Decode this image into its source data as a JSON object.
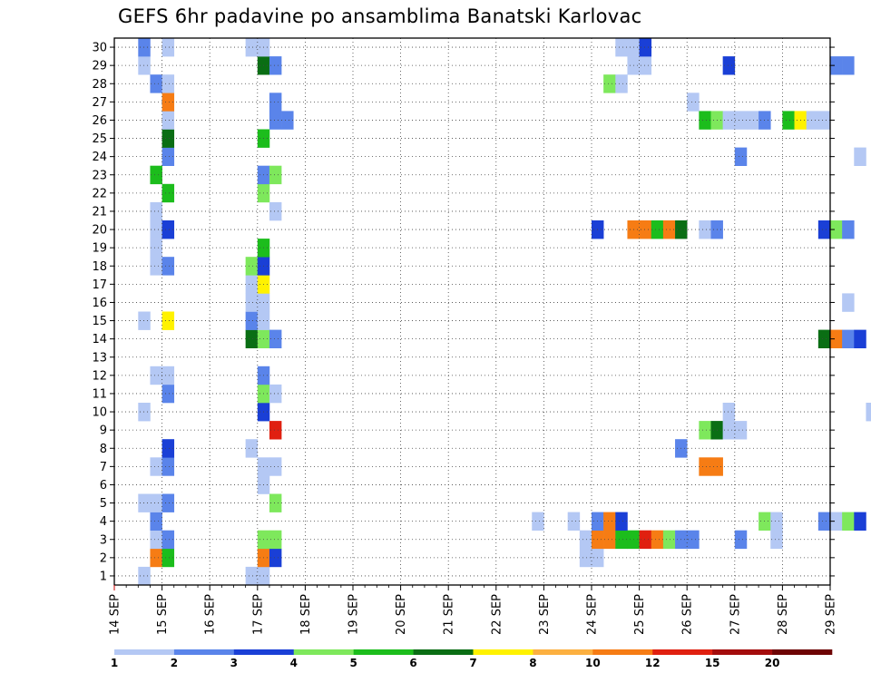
{
  "chart_data": {
    "type": "heatmap",
    "title": "GEFS 6hr padavine po ansamblima Banatski Karlovac",
    "x_tick_labels": [
      "14 SEP",
      "15 SEP",
      "16 SEP",
      "17 SEP",
      "18 SEP",
      "19 SEP",
      "20 SEP",
      "21 SEP",
      "22 SEP",
      "23 SEP",
      "24 SEP",
      "25 SEP",
      "26 SEP",
      "27 SEP",
      "28 SEP",
      "29 SEP"
    ],
    "y_tick_labels": [
      "1",
      "2",
      "3",
      "4",
      "5",
      "6",
      "7",
      "8",
      "9",
      "10",
      "11",
      "12",
      "13",
      "14",
      "15",
      "16",
      "17",
      "18",
      "19",
      "20",
      "21",
      "22",
      "23",
      "24",
      "25",
      "26",
      "27",
      "28",
      "29",
      "30"
    ],
    "ylim": [
      0.5,
      30.5
    ],
    "grid": true,
    "colorbar": {
      "labels": [
        "1",
        "2",
        "3",
        "4",
        "5",
        "6",
        "7",
        "8",
        "10",
        "12",
        "15",
        "20"
      ],
      "colors": [
        "#b4c8f4",
        "#5a84ea",
        "#1a3fd6",
        "#7ee85c",
        "#1cbd1c",
        "#0a6e14",
        "#fff200",
        "#fcb040",
        "#f67c14",
        "#e02010",
        "#a40c0c",
        "#6e0404"
      ]
    },
    "cells": [
      {
        "day": "14 SEP",
        "s": 2,
        "m": 1,
        "v": 1
      },
      {
        "day": "14 SEP",
        "s": 2,
        "m": 5,
        "v": 1
      },
      {
        "day": "14 SEP",
        "s": 2,
        "m": 10,
        "v": 1
      },
      {
        "day": "14 SEP",
        "s": 2,
        "m": 15,
        "v": 1
      },
      {
        "day": "14 SEP",
        "s": 2,
        "m": 29,
        "v": 1
      },
      {
        "day": "14 SEP",
        "s": 2,
        "m": 30,
        "v": 2
      },
      {
        "day": "14 SEP",
        "s": 3,
        "m": 2,
        "v": 10
      },
      {
        "day": "14 SEP",
        "s": 3,
        "m": 3,
        "v": 1
      },
      {
        "day": "14 SEP",
        "s": 3,
        "m": 4,
        "v": 2
      },
      {
        "day": "14 SEP",
        "s": 3,
        "m": 5,
        "v": 1
      },
      {
        "day": "14 SEP",
        "s": 3,
        "m": 7,
        "v": 1
      },
      {
        "day": "14 SEP",
        "s": 3,
        "m": 12,
        "v": 1
      },
      {
        "day": "14 SEP",
        "s": 3,
        "m": 18,
        "v": 1
      },
      {
        "day": "14 SEP",
        "s": 3,
        "m": 19,
        "v": 1
      },
      {
        "day": "14 SEP",
        "s": 3,
        "m": 20,
        "v": 1
      },
      {
        "day": "14 SEP",
        "s": 3,
        "m": 21,
        "v": 1
      },
      {
        "day": "14 SEP",
        "s": 3,
        "m": 23,
        "v": 5
      },
      {
        "day": "14 SEP",
        "s": 3,
        "m": 28,
        "v": 2
      },
      {
        "day": "15 SEP",
        "s": 0,
        "m": 2,
        "v": 5
      },
      {
        "day": "15 SEP",
        "s": 0,
        "m": 3,
        "v": 2
      },
      {
        "day": "15 SEP",
        "s": 0,
        "m": 5,
        "v": 2
      },
      {
        "day": "15 SEP",
        "s": 0,
        "m": 7,
        "v": 2
      },
      {
        "day": "15 SEP",
        "s": 0,
        "m": 8,
        "v": 3
      },
      {
        "day": "15 SEP",
        "s": 0,
        "m": 11,
        "v": 2
      },
      {
        "day": "15 SEP",
        "s": 0,
        "m": 12,
        "v": 1
      },
      {
        "day": "15 SEP",
        "s": 0,
        "m": 15,
        "v": 7
      },
      {
        "day": "15 SEP",
        "s": 0,
        "m": 18,
        "v": 2
      },
      {
        "day": "15 SEP",
        "s": 0,
        "m": 20,
        "v": 3
      },
      {
        "day": "15 SEP",
        "s": 0,
        "m": 22,
        "v": 5
      },
      {
        "day": "15 SEP",
        "s": 0,
        "m": 24,
        "v": 2
      },
      {
        "day": "15 SEP",
        "s": 0,
        "m": 25,
        "v": 6
      },
      {
        "day": "15 SEP",
        "s": 0,
        "m": 26,
        "v": 1
      },
      {
        "day": "15 SEP",
        "s": 0,
        "m": 27,
        "v": 10
      },
      {
        "day": "15 SEP",
        "s": 0,
        "m": 28,
        "v": 1
      },
      {
        "day": "15 SEP",
        "s": 0,
        "m": 30,
        "v": 1
      },
      {
        "day": "16 SEP",
        "s": 3,
        "m": 1,
        "v": 1
      },
      {
        "day": "16 SEP",
        "s": 3,
        "m": 8,
        "v": 1
      },
      {
        "day": "16 SEP",
        "s": 3,
        "m": 14,
        "v": 6
      },
      {
        "day": "16 SEP",
        "s": 3,
        "m": 15,
        "v": 2
      },
      {
        "day": "16 SEP",
        "s": 3,
        "m": 16,
        "v": 1
      },
      {
        "day": "16 SEP",
        "s": 3,
        "m": 17,
        "v": 1
      },
      {
        "day": "16 SEP",
        "s": 3,
        "m": 18,
        "v": 4
      },
      {
        "day": "16 SEP",
        "s": 3,
        "m": 30,
        "v": 1
      },
      {
        "day": "17 SEP",
        "s": 0,
        "m": 1,
        "v": 1
      },
      {
        "day": "17 SEP",
        "s": 0,
        "m": 2,
        "v": 10
      },
      {
        "day": "17 SEP",
        "s": 0,
        "m": 3,
        "v": 4
      },
      {
        "day": "17 SEP",
        "s": 0,
        "m": 6,
        "v": 1
      },
      {
        "day": "17 SEP",
        "s": 0,
        "m": 7,
        "v": 1
      },
      {
        "day": "17 SEP",
        "s": 0,
        "m": 10,
        "v": 3
      },
      {
        "day": "17 SEP",
        "s": 0,
        "m": 11,
        "v": 4
      },
      {
        "day": "17 SEP",
        "s": 0,
        "m": 12,
        "v": 2
      },
      {
        "day": "17 SEP",
        "s": 0,
        "m": 14,
        "v": 4
      },
      {
        "day": "17 SEP",
        "s": 0,
        "m": 15,
        "v": 1
      },
      {
        "day": "17 SEP",
        "s": 0,
        "m": 16,
        "v": 1
      },
      {
        "day": "17 SEP",
        "s": 0,
        "m": 17,
        "v": 7
      },
      {
        "day": "17 SEP",
        "s": 0,
        "m": 18,
        "v": 3
      },
      {
        "day": "17 SEP",
        "s": 0,
        "m": 19,
        "v": 5
      },
      {
        "day": "17 SEP",
        "s": 0,
        "m": 22,
        "v": 4
      },
      {
        "day": "17 SEP",
        "s": 0,
        "m": 23,
        "v": 2
      },
      {
        "day": "17 SEP",
        "s": 0,
        "m": 25,
        "v": 5
      },
      {
        "day": "17 SEP",
        "s": 0,
        "m": 29,
        "v": 6
      },
      {
        "day": "17 SEP",
        "s": 0,
        "m": 30,
        "v": 1
      },
      {
        "day": "17 SEP",
        "s": 1,
        "m": 2,
        "v": 3
      },
      {
        "day": "17 SEP",
        "s": 1,
        "m": 3,
        "v": 4
      },
      {
        "day": "17 SEP",
        "s": 1,
        "m": 5,
        "v": 4
      },
      {
        "day": "17 SEP",
        "s": 1,
        "m": 7,
        "v": 1
      },
      {
        "day": "17 SEP",
        "s": 1,
        "m": 9,
        "v": 12
      },
      {
        "day": "17 SEP",
        "s": 1,
        "m": 11,
        "v": 1
      },
      {
        "day": "17 SEP",
        "s": 1,
        "m": 14,
        "v": 2
      },
      {
        "day": "17 SEP",
        "s": 1,
        "m": 21,
        "v": 1
      },
      {
        "day": "17 SEP",
        "s": 1,
        "m": 23,
        "v": 4
      },
      {
        "day": "17 SEP",
        "s": 1,
        "m": 26,
        "v": 2
      },
      {
        "day": "17 SEP",
        "s": 1,
        "m": 27,
        "v": 2
      },
      {
        "day": "17 SEP",
        "s": 1,
        "m": 29,
        "v": 2
      },
      {
        "day": "17 SEP",
        "s": 2,
        "m": 26,
        "v": 2
      },
      {
        "day": "22 SEP",
        "s": 3,
        "m": 4,
        "v": 1
      },
      {
        "day": "23 SEP",
        "s": 2,
        "m": 4,
        "v": 1
      },
      {
        "day": "23 SEP",
        "s": 3,
        "m": 2,
        "v": 1
      },
      {
        "day": "23 SEP",
        "s": 3,
        "m": 3,
        "v": 1
      },
      {
        "day": "24 SEP",
        "s": 0,
        "m": 2,
        "v": 1
      },
      {
        "day": "24 SEP",
        "s": 0,
        "m": 3,
        "v": 10
      },
      {
        "day": "24 SEP",
        "s": 0,
        "m": 4,
        "v": 2
      },
      {
        "day": "24 SEP",
        "s": 0,
        "m": 20,
        "v": 3
      },
      {
        "day": "24 SEP",
        "s": 1,
        "m": 3,
        "v": 10
      },
      {
        "day": "24 SEP",
        "s": 1,
        "m": 4,
        "v": 10
      },
      {
        "day": "24 SEP",
        "s": 1,
        "m": 28,
        "v": 4
      },
      {
        "day": "24 SEP",
        "s": 2,
        "m": 3,
        "v": 5
      },
      {
        "day": "24 SEP",
        "s": 2,
        "m": 4,
        "v": 3
      },
      {
        "day": "24 SEP",
        "s": 2,
        "m": 28,
        "v": 1
      },
      {
        "day": "24 SEP",
        "s": 2,
        "m": 30,
        "v": 1
      },
      {
        "day": "24 SEP",
        "s": 3,
        "m": 3,
        "v": 5
      },
      {
        "day": "24 SEP",
        "s": 3,
        "m": 20,
        "v": 10
      },
      {
        "day": "24 SEP",
        "s": 3,
        "m": 29,
        "v": 1
      },
      {
        "day": "24 SEP",
        "s": 3,
        "m": 30,
        "v": 1
      },
      {
        "day": "25 SEP",
        "s": 0,
        "m": 3,
        "v": 12
      },
      {
        "day": "25 SEP",
        "s": 0,
        "m": 20,
        "v": 10
      },
      {
        "day": "25 SEP",
        "s": 0,
        "m": 29,
        "v": 1
      },
      {
        "day": "25 SEP",
        "s": 0,
        "m": 30,
        "v": 3
      },
      {
        "day": "25 SEP",
        "s": 1,
        "m": 3,
        "v": 10
      },
      {
        "day": "25 SEP",
        "s": 1,
        "m": 20,
        "v": 5
      },
      {
        "day": "25 SEP",
        "s": 2,
        "m": 3,
        "v": 4
      },
      {
        "day": "25 SEP",
        "s": 2,
        "m": 20,
        "v": 10
      },
      {
        "day": "25 SEP",
        "s": 3,
        "m": 3,
        "v": 2
      },
      {
        "day": "25 SEP",
        "s": 3,
        "m": 8,
        "v": 2
      },
      {
        "day": "25 SEP",
        "s": 3,
        "m": 20,
        "v": 6
      },
      {
        "day": "26 SEP",
        "s": 0,
        "m": 3,
        "v": 2
      },
      {
        "day": "26 SEP",
        "s": 0,
        "m": 27,
        "v": 1
      },
      {
        "day": "26 SEP",
        "s": 1,
        "m": 7,
        "v": 10
      },
      {
        "day": "26 SEP",
        "s": 1,
        "m": 9,
        "v": 4
      },
      {
        "day": "26 SEP",
        "s": 1,
        "m": 20,
        "v": 1
      },
      {
        "day": "26 SEP",
        "s": 1,
        "m": 26,
        "v": 5
      },
      {
        "day": "26 SEP",
        "s": 2,
        "m": 7,
        "v": 10
      },
      {
        "day": "26 SEP",
        "s": 2,
        "m": 9,
        "v": 6
      },
      {
        "day": "26 SEP",
        "s": 2,
        "m": 20,
        "v": 2
      },
      {
        "day": "26 SEP",
        "s": 2,
        "m": 26,
        "v": 4
      },
      {
        "day": "26 SEP",
        "s": 3,
        "m": 9,
        "v": 1
      },
      {
        "day": "26 SEP",
        "s": 3,
        "m": 10,
        "v": 1
      },
      {
        "day": "26 SEP",
        "s": 3,
        "m": 26,
        "v": 1
      },
      {
        "day": "26 SEP",
        "s": 3,
        "m": 29,
        "v": 3
      },
      {
        "day": "27 SEP",
        "s": 0,
        "m": 3,
        "v": 2
      },
      {
        "day": "27 SEP",
        "s": 0,
        "m": 9,
        "v": 1
      },
      {
        "day": "27 SEP",
        "s": 0,
        "m": 24,
        "v": 2
      },
      {
        "day": "27 SEP",
        "s": 0,
        "m": 26,
        "v": 1
      },
      {
        "day": "27 SEP",
        "s": 1,
        "m": 26,
        "v": 1
      },
      {
        "day": "27 SEP",
        "s": 2,
        "m": 4,
        "v": 4
      },
      {
        "day": "27 SEP",
        "s": 2,
        "m": 26,
        "v": 2
      },
      {
        "day": "27 SEP",
        "s": 3,
        "m": 3,
        "v": 1
      },
      {
        "day": "27 SEP",
        "s": 3,
        "m": 4,
        "v": 1
      },
      {
        "day": "28 SEP",
        "s": 0,
        "m": 26,
        "v": 5
      },
      {
        "day": "28 SEP",
        "s": 1,
        "m": 26,
        "v": 7
      },
      {
        "day": "28 SEP",
        "s": 2,
        "m": 26,
        "v": 1
      },
      {
        "day": "28 SEP",
        "s": 3,
        "m": 4,
        "v": 2
      },
      {
        "day": "28 SEP",
        "s": 3,
        "m": 14,
        "v": 6
      },
      {
        "day": "28 SEP",
        "s": 3,
        "m": 20,
        "v": 3
      },
      {
        "day": "28 SEP",
        "s": 3,
        "m": 26,
        "v": 1
      },
      {
        "day": "29 SEP",
        "s": 0,
        "m": 4,
        "v": 1
      },
      {
        "day": "29 SEP",
        "s": 0,
        "m": 14,
        "v": 10
      },
      {
        "day": "29 SEP",
        "s": 0,
        "m": 20,
        "v": 4
      },
      {
        "day": "29 SEP",
        "s": 0,
        "m": 29,
        "v": 2
      },
      {
        "day": "29 SEP",
        "s": 1,
        "m": 4,
        "v": 4
      },
      {
        "day": "29 SEP",
        "s": 1,
        "m": 14,
        "v": 2
      },
      {
        "day": "29 SEP",
        "s": 1,
        "m": 16,
        "v": 1
      },
      {
        "day": "29 SEP",
        "s": 1,
        "m": 20,
        "v": 2
      },
      {
        "day": "29 SEP",
        "s": 1,
        "m": 29,
        "v": 2
      },
      {
        "day": "29 SEP",
        "s": 2,
        "m": 4,
        "v": 3
      },
      {
        "day": "29 SEP",
        "s": 2,
        "m": 14,
        "v": 3
      },
      {
        "day": "29 SEP",
        "s": 2,
        "m": 24,
        "v": 1
      },
      {
        "day": "29 SEP",
        "s": 3,
        "m": 10,
        "v": 1
      }
    ]
  }
}
